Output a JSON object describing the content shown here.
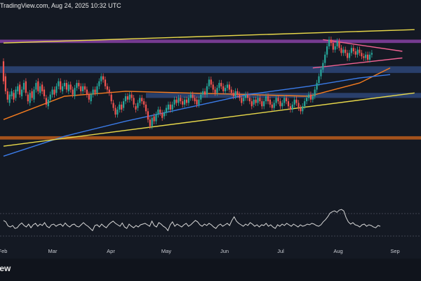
{
  "header": {
    "watermark": "TradingView.com, Aug 24, 2025 10:32 UTC"
  },
  "footer": {
    "label": "iew"
  },
  "colors": {
    "bull": "#26a69a",
    "bear": "#ef5350",
    "ma_orange": "#f57c1f",
    "ma_blue": "#3b7be8",
    "trend_yellow": "#e8d84a",
    "zone_purple": "#8e44ad",
    "zone_blue": "#3a5fa8",
    "zone_orange": "#c8601a",
    "wedge_pink": "#f06292",
    "oscillator": "#d8d8d8"
  },
  "chart_data": {
    "type": "candlestick",
    "x_tick_labels": [
      "Feb",
      "Mar",
      "Apr",
      "May",
      "Jun",
      "Jul",
      "Aug",
      "Sep"
    ],
    "price_scale": [
      0,
      100
    ],
    "candles": [
      [
        75,
        63
      ],
      [
        66,
        57
      ],
      [
        57,
        52
      ],
      [
        50,
        55
      ],
      [
        54,
        57
      ],
      [
        56,
        52
      ],
      [
        53,
        58
      ],
      [
        57,
        60
      ],
      [
        61,
        55
      ],
      [
        54,
        58
      ],
      [
        58,
        62
      ],
      [
        63,
        56
      ],
      [
        55,
        51
      ],
      [
        50,
        56
      ],
      [
        57,
        53
      ],
      [
        52,
        58
      ],
      [
        58,
        62
      ],
      [
        63,
        57
      ],
      [
        56,
        60
      ],
      [
        61,
        57
      ],
      [
        58,
        54
      ],
      [
        53,
        49
      ],
      [
        48,
        52
      ],
      [
        52,
        55
      ],
      [
        55,
        58
      ],
      [
        58,
        55
      ],
      [
        56,
        60
      ],
      [
        60,
        63
      ],
      [
        63,
        58
      ],
      [
        57,
        60
      ],
      [
        60,
        62
      ],
      [
        62,
        58
      ],
      [
        57,
        61
      ],
      [
        61,
        58
      ],
      [
        58,
        55
      ],
      [
        54,
        59
      ],
      [
        59,
        62
      ],
      [
        62,
        60
      ],
      [
        60,
        57
      ],
      [
        57,
        60
      ],
      [
        60,
        58
      ],
      [
        58,
        55
      ],
      [
        55,
        52
      ],
      [
        51,
        55
      ],
      [
        55,
        58
      ],
      [
        58,
        56
      ],
      [
        56,
        60
      ],
      [
        60,
        63
      ],
      [
        63,
        66
      ],
      [
        66,
        64
      ],
      [
        64,
        60
      ],
      [
        60,
        58
      ],
      [
        58,
        56
      ],
      [
        55,
        51
      ],
      [
        50,
        47
      ],
      [
        47,
        43
      ],
      [
        43,
        46
      ],
      [
        46,
        49
      ],
      [
        49,
        46
      ],
      [
        47,
        51
      ],
      [
        51,
        54
      ],
      [
        54,
        52
      ],
      [
        52,
        55
      ],
      [
        55,
        53
      ],
      [
        53,
        49
      ],
      [
        48,
        46
      ],
      [
        47,
        50
      ],
      [
        50,
        53
      ],
      [
        53,
        51
      ],
      [
        51,
        49
      ],
      [
        49,
        45
      ],
      [
        45,
        40
      ],
      [
        40,
        36
      ],
      [
        36,
        41
      ],
      [
        42,
        39
      ],
      [
        39,
        43
      ],
      [
        43,
        46
      ],
      [
        46,
        44
      ],
      [
        44,
        41
      ],
      [
        42,
        44
      ],
      [
        44,
        47
      ],
      [
        46,
        49
      ],
      [
        49,
        46
      ],
      [
        46,
        49
      ],
      [
        49,
        52
      ],
      [
        52,
        50
      ],
      [
        50,
        53
      ],
      [
        53,
        51
      ],
      [
        51,
        49
      ],
      [
        49,
        52
      ],
      [
        52,
        50
      ],
      [
        50,
        53
      ],
      [
        53,
        55
      ],
      [
        55,
        53
      ],
      [
        53,
        51
      ],
      [
        52,
        49
      ],
      [
        49,
        52
      ],
      [
        52,
        55
      ],
      [
        55,
        57
      ],
      [
        57,
        55
      ],
      [
        55,
        60
      ],
      [
        60,
        64
      ],
      [
        64,
        61
      ],
      [
        61,
        58
      ],
      [
        58,
        56
      ],
      [
        56,
        59
      ],
      [
        59,
        62
      ],
      [
        62,
        60
      ],
      [
        60,
        57
      ],
      [
        57,
        59
      ],
      [
        59,
        61
      ],
      [
        61,
        58
      ],
      [
        58,
        56
      ],
      [
        56,
        54
      ],
      [
        54,
        57
      ],
      [
        57,
        55
      ],
      [
        55,
        53
      ],
      [
        53,
        50
      ],
      [
        51,
        53
      ],
      [
        53,
        55
      ],
      [
        55,
        53
      ],
      [
        53,
        51
      ],
      [
        51,
        48
      ],
      [
        49,
        52
      ],
      [
        52,
        50
      ],
      [
        50,
        53
      ],
      [
        53,
        51
      ],
      [
        51,
        48
      ],
      [
        48,
        51
      ],
      [
        51,
        54
      ],
      [
        54,
        51
      ],
      [
        52,
        49
      ],
      [
        49,
        47
      ],
      [
        47,
        50
      ],
      [
        50,
        53
      ],
      [
        53,
        51
      ],
      [
        51,
        48
      ],
      [
        48,
        50
      ],
      [
        50,
        53
      ],
      [
        53,
        51
      ],
      [
        51,
        48
      ],
      [
        48,
        46
      ],
      [
        46,
        49
      ],
      [
        49,
        52
      ],
      [
        52,
        50
      ],
      [
        50,
        47
      ],
      [
        47,
        45
      ],
      [
        45,
        48
      ],
      [
        48,
        51
      ],
      [
        51,
        53
      ],
      [
        53,
        55
      ],
      [
        55,
        52
      ],
      [
        52,
        54
      ],
      [
        54,
        58
      ],
      [
        58,
        62
      ],
      [
        62,
        66
      ],
      [
        66,
        70
      ],
      [
        70,
        74
      ],
      [
        74,
        79
      ],
      [
        79,
        84
      ],
      [
        84,
        88
      ],
      [
        88,
        86
      ],
      [
        86,
        82
      ],
      [
        82,
        84
      ],
      [
        84,
        87
      ],
      [
        87,
        83
      ],
      [
        83,
        80
      ],
      [
        80,
        82
      ],
      [
        82,
        80
      ],
      [
        80,
        77
      ],
      [
        77,
        80
      ],
      [
        80,
        83
      ],
      [
        83,
        81
      ],
      [
        81,
        79
      ],
      [
        79,
        82
      ],
      [
        82,
        80
      ],
      [
        80,
        78
      ],
      [
        78,
        77
      ],
      [
        77,
        79
      ],
      [
        79,
        76
      ],
      [
        76,
        79
      ],
      [
        79,
        80
      ]
    ],
    "moving_averages": [
      {
        "color_key": "ma_orange",
        "x": [
          0,
          30,
          60,
          90,
          120,
          150,
          175,
          190
        ],
        "y": [
          40,
          54,
          57,
          56,
          55,
          54,
          62,
          71
        ]
      },
      {
        "color_key": "ma_blue",
        "x": [
          0,
          30,
          60,
          90,
          120,
          150,
          175,
          190
        ],
        "y": [
          18,
          30,
          39,
          47,
          55,
          60,
          65,
          67
        ]
      }
    ],
    "trendlines": [
      {
        "color_key": "trend_yellow",
        "x": [
          0,
          202
        ],
        "y": [
          24,
          56
        ]
      },
      {
        "color_key": "trend_yellow",
        "x": [
          0,
          202
        ],
        "y": [
          86,
          94
        ]
      },
      {
        "color_key": "wedge_pink",
        "x": [
          157,
          196
        ],
        "y": [
          88,
          81
        ]
      },
      {
        "color_key": "wedge_pink",
        "x": [
          152,
          196
        ],
        "y": [
          71,
          77
        ]
      }
    ],
    "zones": [
      {
        "color_key": "zone_purple",
        "y": [
          86,
          88
        ]
      },
      {
        "color_key": "zone_blue",
        "y": [
          68,
          72
        ]
      },
      {
        "color_key": "zone_blue",
        "y": [
          53,
          56
        ],
        "x_start": 70
      },
      {
        "color_key": "zone_orange",
        "y": [
          28,
          30
        ]
      }
    ],
    "oscillator": {
      "range": [
        0,
        100
      ],
      "values": [
        62,
        58,
        47,
        44,
        48,
        40,
        42,
        50,
        55,
        48,
        44,
        52,
        42,
        50,
        54,
        46,
        52,
        48,
        56,
        46,
        42,
        50,
        52,
        46,
        50,
        52,
        46,
        55,
        48,
        44,
        50,
        52,
        46,
        44,
        50,
        56,
        50,
        46,
        40,
        34,
        48,
        50,
        44,
        52,
        46,
        42,
        50,
        56,
        60,
        54,
        50,
        46,
        55,
        44,
        40,
        52,
        46,
        42,
        48,
        44,
        50,
        52,
        54,
        50,
        46,
        60,
        48,
        44,
        56,
        52,
        46,
        42,
        34,
        50,
        58,
        46,
        52,
        48,
        44,
        50,
        54,
        46,
        50,
        56,
        62,
        58,
        50,
        46,
        52,
        48,
        54,
        50,
        44,
        40,
        48,
        52,
        46,
        50,
        54,
        48,
        62,
        72,
        60,
        54,
        50,
        46,
        52,
        48,
        56,
        52,
        46,
        50,
        44,
        50,
        48,
        54,
        46,
        50,
        44,
        40,
        50,
        46,
        52,
        48,
        54,
        50,
        46,
        52,
        48,
        44,
        50,
        46,
        48,
        52,
        50,
        54,
        52,
        48,
        46,
        50,
        58,
        64,
        72,
        82,
        86,
        88,
        84,
        90,
        92,
        88,
        70,
        58,
        52,
        56,
        50,
        48,
        44,
        50,
        52,
        46,
        50,
        48,
        44,
        42,
        48,
        46
      ]
    }
  }
}
